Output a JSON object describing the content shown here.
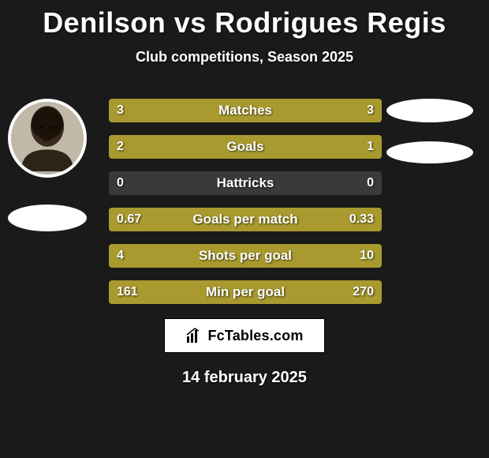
{
  "title": "Denilson vs Rodrigues Regis",
  "subtitle": "Club competitions, Season 2025",
  "date": "14 february 2025",
  "logo_text": "FcTables.com",
  "colors": {
    "background": "#1a1a1a",
    "bar_fill": "#a89a2e",
    "bar_bg": "#3a3a3a",
    "text": "#ffffff",
    "logo_bg": "#ffffff",
    "logo_text": "#000000"
  },
  "rows": [
    {
      "label": "Matches",
      "left_val": "3",
      "right_val": "3",
      "left_pct": 50,
      "right_pct": 50
    },
    {
      "label": "Goals",
      "left_val": "2",
      "right_val": "1",
      "left_pct": 66.7,
      "right_pct": 33.3
    },
    {
      "label": "Hattricks",
      "left_val": "0",
      "right_val": "0",
      "left_pct": 0,
      "right_pct": 0
    },
    {
      "label": "Goals per match",
      "left_val": "0.67",
      "right_val": "0.33",
      "left_pct": 67,
      "right_pct": 33
    },
    {
      "label": "Shots per goal",
      "left_val": "4",
      "right_val": "10",
      "left_pct": 28.6,
      "right_pct": 71.4
    },
    {
      "label": "Min per goal",
      "left_val": "161",
      "right_val": "270",
      "left_pct": 37.4,
      "right_pct": 62.6
    }
  ]
}
